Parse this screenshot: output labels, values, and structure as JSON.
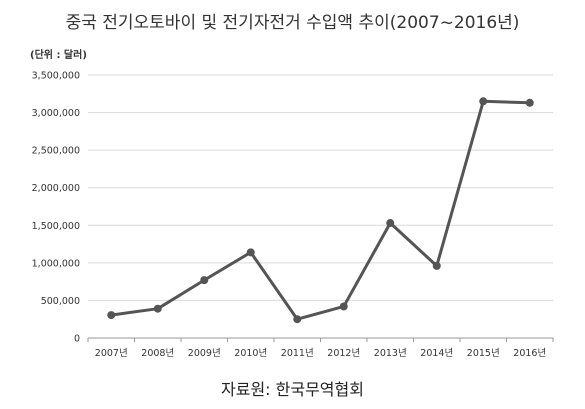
{
  "chart_data": {
    "type": "line",
    "title": "중국 전기오토바이 및 전기자전거 수입액 추이(2007~2016년)",
    "unit_label": "(단위 : 달러)",
    "categories": [
      "2007년",
      "2008년",
      "2009년",
      "2010년",
      "2011년",
      "2012년",
      "2013년",
      "2014년",
      "2015년",
      "2016년"
    ],
    "series": [
      {
        "values": [
          305000,
          390000,
          770000,
          1140000,
          250000,
          420000,
          1530000,
          960000,
          3150000,
          3130000
        ]
      }
    ],
    "ylim": [
      0,
      3500000
    ],
    "yticks": [
      0,
      500000,
      1000000,
      1500000,
      2000000,
      2500000,
      3000000,
      3500000
    ],
    "ytick_labels": [
      "0",
      "500,000",
      "1,000,000",
      "1,500,000",
      "2,000,000",
      "2,500,000",
      "3,000,000",
      "3,500,000"
    ],
    "grid": true,
    "line_color": "#555555",
    "grid_color": "#d9d9d9"
  },
  "source": "자료원: 한국무역협회"
}
